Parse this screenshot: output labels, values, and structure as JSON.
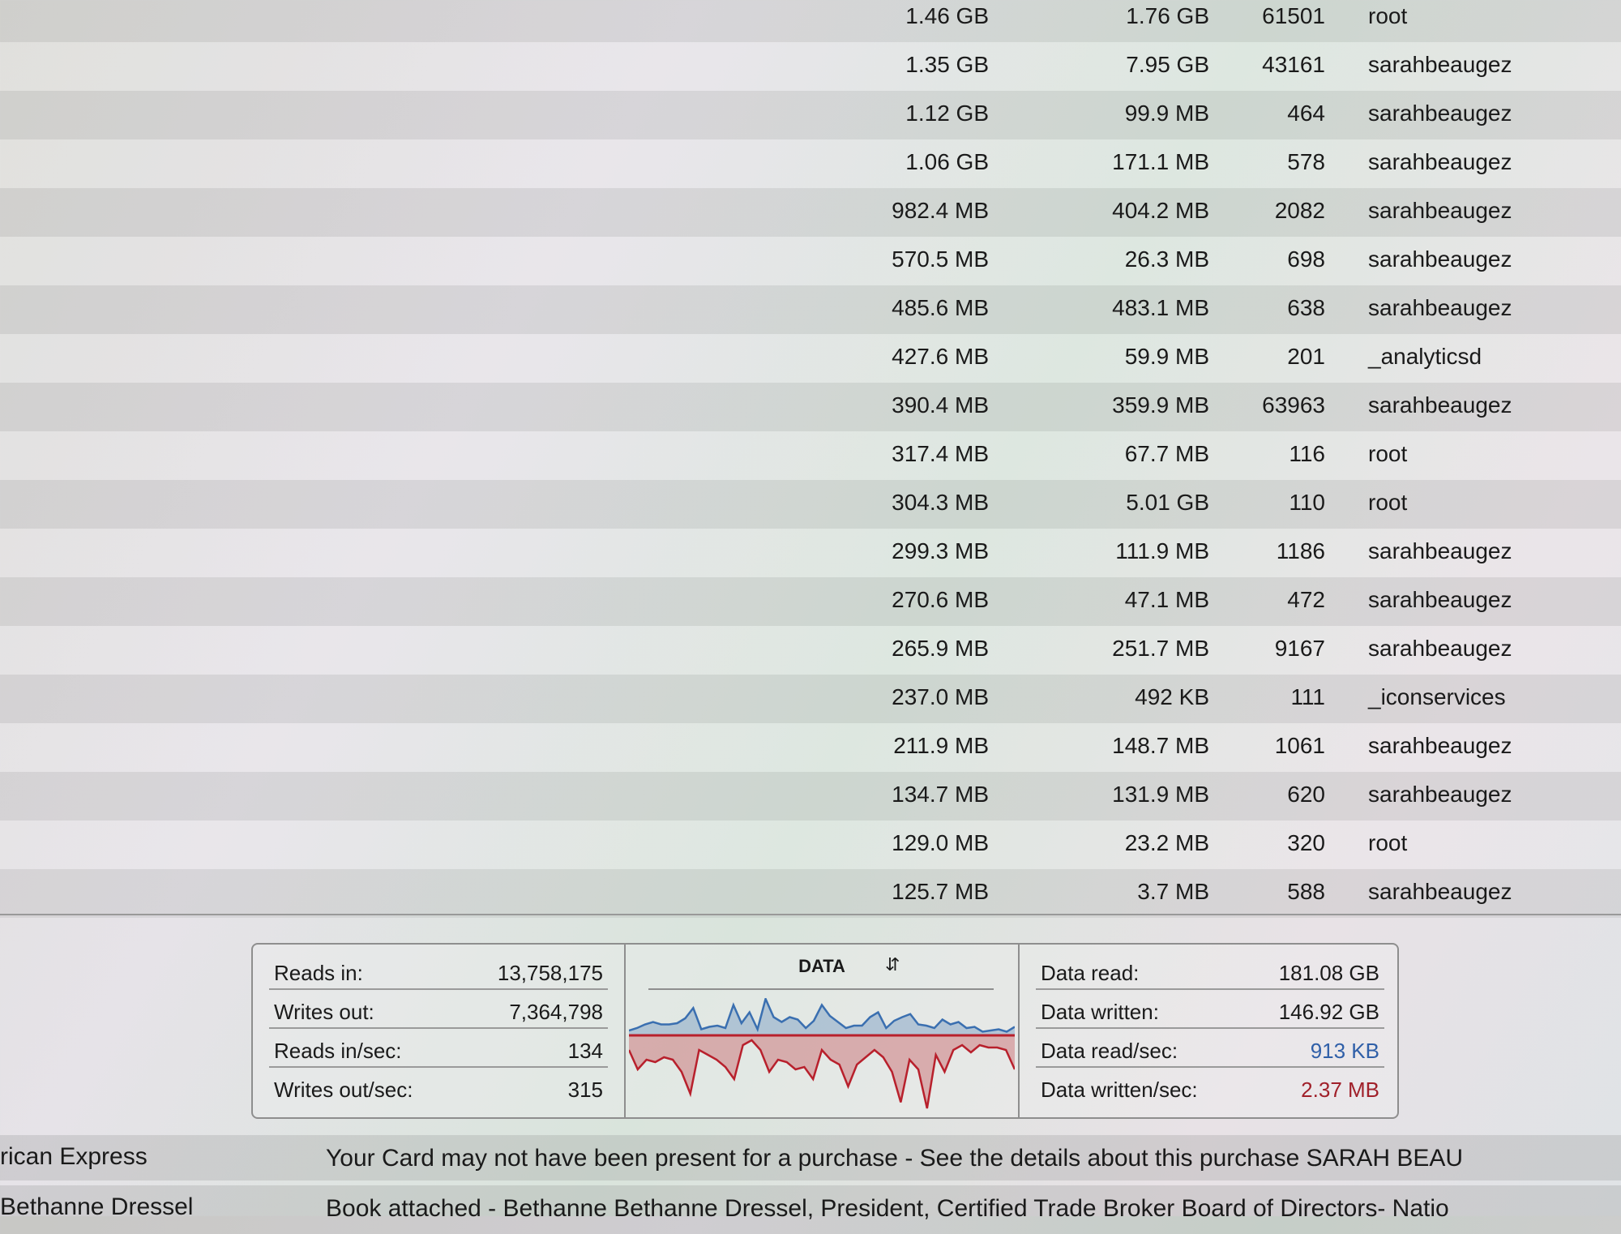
{
  "process_table": {
    "rows": [
      [
        "1.46 GB",
        "1.76 GB",
        "61501",
        "root"
      ],
      [
        "1.35 GB",
        "7.95 GB",
        "43161",
        "sarahbeaugez"
      ],
      [
        "1.12 GB",
        "99.9 MB",
        "464",
        "sarahbeaugez"
      ],
      [
        "1.06 GB",
        "171.1 MB",
        "578",
        "sarahbeaugez"
      ],
      [
        "982.4 MB",
        "404.2 MB",
        "2082",
        "sarahbeaugez"
      ],
      [
        "570.5 MB",
        "26.3 MB",
        "698",
        "sarahbeaugez"
      ],
      [
        "485.6 MB",
        "483.1 MB",
        "638",
        "sarahbeaugez"
      ],
      [
        "427.6 MB",
        "59.9 MB",
        "201",
        "_analyticsd"
      ],
      [
        "390.4 MB",
        "359.9 MB",
        "63963",
        "sarahbeaugez"
      ],
      [
        "317.4 MB",
        "67.7 MB",
        "116",
        "root"
      ],
      [
        "304.3 MB",
        "5.01 GB",
        "110",
        "root"
      ],
      [
        "299.3 MB",
        "111.9 MB",
        "1186",
        "sarahbeaugez"
      ],
      [
        "270.6 MB",
        "47.1 MB",
        "472",
        "sarahbeaugez"
      ],
      [
        "265.9 MB",
        "251.7 MB",
        "9167",
        "sarahbeaugez"
      ],
      [
        "237.0 MB",
        "492 KB",
        "111",
        "_iconservices"
      ],
      [
        "211.9 MB",
        "148.7 MB",
        "1061",
        "sarahbeaugez"
      ],
      [
        "134.7 MB",
        "131.9 MB",
        "620",
        "sarahbeaugez"
      ],
      [
        "129.0 MB",
        "23.2 MB",
        "320",
        "root"
      ],
      [
        "125.7 MB",
        "3.7 MB",
        "588",
        "sarahbeaugez"
      ]
    ]
  },
  "stats_left": [
    {
      "label": "Reads in:",
      "value": "13,758,175"
    },
    {
      "label": "Writes out:",
      "value": "7,364,798"
    },
    {
      "label": "Reads in/sec:",
      "value": "134"
    },
    {
      "label": "Writes out/sec:",
      "value": "315"
    }
  ],
  "graph": {
    "title": "DATA",
    "selector_icon": "up-down-chevron-icon",
    "read_color": "#3a6fb0",
    "write_color": "#b8202c",
    "read_series": [
      8,
      12,
      18,
      22,
      18,
      18,
      20,
      28,
      45,
      10,
      14,
      16,
      12,
      50,
      20,
      38,
      10,
      60,
      30,
      22,
      30,
      26,
      12,
      24,
      50,
      32,
      22,
      12,
      16,
      16,
      30,
      38,
      12,
      24,
      30,
      35,
      18,
      16,
      12,
      26,
      18,
      22,
      12,
      14,
      6,
      8,
      10,
      6,
      14
    ],
    "write_series": [
      12,
      28,
      20,
      22,
      18,
      20,
      30,
      48,
      12,
      16,
      20,
      26,
      36,
      8,
      4,
      12,
      30,
      20,
      22,
      28,
      26,
      36,
      12,
      20,
      24,
      42,
      24,
      18,
      12,
      18,
      30,
      55,
      20,
      28,
      60,
      16,
      30,
      12,
      8,
      14,
      8,
      10,
      10,
      12,
      28
    ]
  },
  "stats_right": [
    {
      "label": "Data read:",
      "value": "181.08 GB"
    },
    {
      "label": "Data written:",
      "value": "146.92 GB"
    },
    {
      "label": "Data read/sec:",
      "value": "913 KB"
    },
    {
      "label": "Data written/sec:",
      "value": "2.37 MB"
    }
  ],
  "mail": [
    {
      "sender": "rican Express",
      "subject": "Your Card may not have been present for a purchase - See the details about this purchase SARAH BEAU"
    },
    {
      "sender": "Bethanne Dressel",
      "subject": "Book attached - Bethanne Bethanne Dressel, President, Certified Trade Broker Board of Directors- Natio"
    }
  ]
}
